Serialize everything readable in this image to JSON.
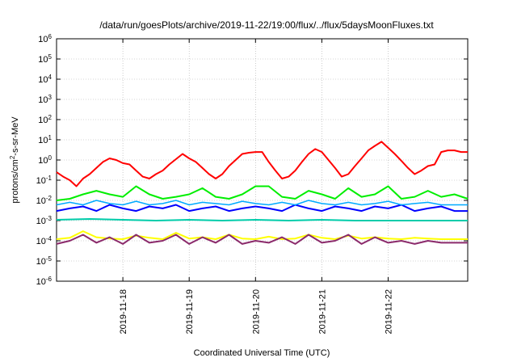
{
  "chart_data": {
    "type": "line",
    "title": "/data/run/goesPlots/archive/2019-11-22/19:00/flux/../flux/5daysMoonFluxes.txt",
    "xlabel": "Coordinated Universal Time (UTC)",
    "ylabel_parts": {
      "pre": "protons/cm",
      "sup": "2",
      "post": "-s-sr-MeV"
    },
    "yscale": "log",
    "ylim": [
      1e-06,
      1000000.0
    ],
    "xlim": [
      0,
      6.2
    ],
    "y_ticks": [
      {
        "base": "10",
        "exp": "-6",
        "value": -6
      },
      {
        "base": "10",
        "exp": "-5",
        "value": -5
      },
      {
        "base": "10",
        "exp": "-4",
        "value": -4
      },
      {
        "base": "10",
        "exp": "-3",
        "value": -3
      },
      {
        "base": "10",
        "exp": "-2",
        "value": -2
      },
      {
        "base": "10",
        "exp": "-1",
        "value": -1
      },
      {
        "base": "10",
        "exp": "0",
        "value": 0
      },
      {
        "base": "10",
        "exp": "1",
        "value": 1
      },
      {
        "base": "10",
        "exp": "2",
        "value": 2
      },
      {
        "base": "10",
        "exp": "3",
        "value": 3
      },
      {
        "base": "10",
        "exp": "4",
        "value": 4
      },
      {
        "base": "10",
        "exp": "5",
        "value": 5
      },
      {
        "base": "10",
        "exp": "6",
        "value": 6
      }
    ],
    "x_ticks": [
      {
        "label": "2019-11-18",
        "value": 1
      },
      {
        "label": "2019-11-19",
        "value": 2
      },
      {
        "label": "2019-11-20",
        "value": 3
      },
      {
        "label": "2019-11-21",
        "value": 4
      },
      {
        "label": "2019-11-22",
        "value": 5
      }
    ],
    "grid": true,
    "series": [
      {
        "color": "#ff0000",
        "width": 2,
        "x": [
          0,
          0.1,
          0.2,
          0.3,
          0.4,
          0.5,
          0.6,
          0.7,
          0.8,
          0.9,
          1.0,
          1.1,
          1.2,
          1.3,
          1.4,
          1.5,
          1.6,
          1.7,
          1.8,
          1.9,
          2.0,
          2.1,
          2.2,
          2.3,
          2.4,
          2.5,
          2.6,
          2.7,
          2.8,
          2.9,
          3.0,
          3.1,
          3.2,
          3.3,
          3.4,
          3.5,
          3.6,
          3.7,
          3.8,
          3.9,
          4.0,
          4.1,
          4.2,
          4.3,
          4.4,
          4.5,
          4.6,
          4.7,
          4.8,
          4.9,
          5.0,
          5.1,
          5.2,
          5.3,
          5.4,
          5.5,
          5.6,
          5.7,
          5.8,
          5.9,
          6.0,
          6.1,
          6.2
        ],
        "y": [
          0.25,
          0.15,
          0.1,
          0.05,
          0.12,
          0.2,
          0.4,
          0.8,
          1.2,
          1.0,
          0.7,
          0.6,
          0.3,
          0.15,
          0.12,
          0.2,
          0.3,
          0.6,
          1.1,
          2.0,
          1.2,
          0.8,
          0.4,
          0.2,
          0.12,
          0.2,
          0.5,
          1.0,
          2.0,
          2.3,
          2.5,
          2.5,
          0.8,
          0.3,
          0.12,
          0.15,
          0.3,
          0.8,
          2.0,
          3.5,
          2.5,
          1.0,
          0.4,
          0.15,
          0.2,
          0.5,
          1.2,
          3.0,
          5.0,
          8.0,
          4.0,
          2.0,
          0.9,
          0.4,
          0.2,
          0.3,
          0.5,
          0.6,
          2.5,
          3.0,
          3.0,
          2.5,
          2.5
        ]
      },
      {
        "color": "#00ee00",
        "width": 2,
        "x": [
          0,
          0.2,
          0.4,
          0.6,
          0.8,
          1.0,
          1.2,
          1.4,
          1.6,
          1.8,
          2.0,
          2.2,
          2.4,
          2.6,
          2.8,
          3.0,
          3.2,
          3.4,
          3.6,
          3.8,
          4.0,
          4.2,
          4.4,
          4.6,
          4.8,
          5.0,
          5.2,
          5.4,
          5.6,
          5.8,
          6.0,
          6.2
        ],
        "y": [
          0.01,
          0.012,
          0.02,
          0.03,
          0.02,
          0.015,
          0.05,
          0.02,
          0.012,
          0.015,
          0.02,
          0.04,
          0.015,
          0.012,
          0.02,
          0.05,
          0.05,
          0.015,
          0.012,
          0.03,
          0.02,
          0.012,
          0.04,
          0.015,
          0.02,
          0.05,
          0.012,
          0.015,
          0.03,
          0.015,
          0.02,
          0.012
        ]
      },
      {
        "color": "#0000ff",
        "width": 2,
        "x": [
          0,
          0.2,
          0.4,
          0.6,
          0.8,
          1.0,
          1.2,
          1.4,
          1.6,
          1.8,
          2.0,
          2.2,
          2.4,
          2.6,
          2.8,
          3.0,
          3.2,
          3.4,
          3.6,
          3.8,
          4.0,
          4.2,
          4.4,
          4.6,
          4.8,
          5.0,
          5.2,
          5.4,
          5.6,
          5.8,
          6.0,
          6.2
        ],
        "y": [
          0.003,
          0.004,
          0.005,
          0.003,
          0.006,
          0.004,
          0.003,
          0.005,
          0.004,
          0.006,
          0.003,
          0.004,
          0.005,
          0.003,
          0.004,
          0.005,
          0.004,
          0.003,
          0.006,
          0.004,
          0.003,
          0.005,
          0.004,
          0.003,
          0.005,
          0.004,
          0.006,
          0.003,
          0.004,
          0.005,
          0.003,
          0.003
        ]
      },
      {
        "color": "#00aaff",
        "width": 1.5,
        "x": [
          0,
          0.2,
          0.4,
          0.6,
          0.8,
          1.0,
          1.2,
          1.4,
          1.6,
          1.8,
          2.0,
          2.2,
          2.4,
          2.6,
          2.8,
          3.0,
          3.2,
          3.4,
          3.6,
          3.8,
          4.0,
          4.2,
          4.4,
          4.6,
          4.8,
          5.0,
          5.2,
          5.4,
          5.6,
          5.8,
          6.0,
          6.2
        ],
        "y": [
          0.006,
          0.008,
          0.006,
          0.01,
          0.007,
          0.006,
          0.009,
          0.006,
          0.007,
          0.01,
          0.006,
          0.008,
          0.007,
          0.006,
          0.009,
          0.007,
          0.006,
          0.008,
          0.006,
          0.01,
          0.007,
          0.006,
          0.008,
          0.006,
          0.007,
          0.009,
          0.006,
          0.007,
          0.008,
          0.006,
          0.006,
          0.006
        ]
      },
      {
        "color": "#00ccaa",
        "width": 2,
        "x": [
          0,
          0.5,
          1.0,
          1.5,
          2.0,
          2.5,
          3.0,
          3.5,
          4.0,
          4.5,
          5.0,
          5.5,
          6.0,
          6.2
        ],
        "y": [
          0.0011,
          0.0012,
          0.0011,
          0.001,
          0.0011,
          0.001,
          0.0011,
          0.001,
          0.0011,
          0.001,
          0.001,
          0.001,
          0.001,
          0.001
        ]
      },
      {
        "color": "#ffff00",
        "width": 2,
        "x": [
          0,
          0.2,
          0.4,
          0.6,
          0.8,
          1.0,
          1.2,
          1.4,
          1.6,
          1.8,
          2.0,
          2.2,
          2.4,
          2.6,
          2.8,
          3.0,
          3.2,
          3.4,
          3.6,
          3.8,
          4.0,
          4.2,
          4.4,
          4.6,
          4.8,
          5.0,
          5.2,
          5.4,
          5.6,
          5.8,
          6.0,
          6.2
        ],
        "y": [
          0.00012,
          0.00014,
          0.0003,
          0.00015,
          0.00013,
          0.00012,
          0.00018,
          0.00014,
          0.00012,
          0.00025,
          0.00013,
          0.00015,
          0.00012,
          0.0002,
          0.00013,
          0.00012,
          0.00016,
          0.00012,
          0.00013,
          0.0002,
          0.00014,
          0.00012,
          0.00018,
          0.00013,
          0.00015,
          0.00013,
          0.00012,
          0.00014,
          0.00013,
          0.00012,
          0.00012,
          0.00012
        ]
      },
      {
        "color": "#8b2a6b",
        "width": 2,
        "x": [
          0,
          0.2,
          0.4,
          0.6,
          0.8,
          1.0,
          1.2,
          1.4,
          1.6,
          1.8,
          2.0,
          2.2,
          2.4,
          2.6,
          2.8,
          3.0,
          3.2,
          3.4,
          3.6,
          3.8,
          4.0,
          4.2,
          4.4,
          4.6,
          4.8,
          5.0,
          5.2,
          5.4,
          5.6,
          5.8,
          6.0,
          6.2
        ],
        "y": [
          7e-05,
          0.0001,
          0.0002,
          8e-05,
          0.00015,
          7e-05,
          0.0002,
          8e-05,
          0.0001,
          0.0002,
          7e-05,
          0.00015,
          8e-05,
          0.0002,
          7e-05,
          0.0001,
          8e-05,
          0.00015,
          7e-05,
          0.0002,
          8e-05,
          0.0001,
          0.0002,
          7e-05,
          0.00015,
          8e-05,
          0.0001,
          7e-05,
          0.0001,
          8e-05,
          8e-05,
          8e-05
        ]
      }
    ]
  }
}
